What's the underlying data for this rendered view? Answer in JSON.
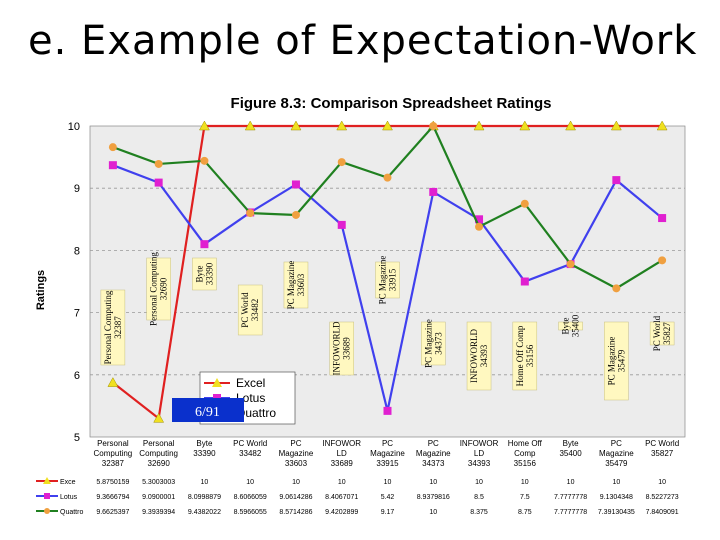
{
  "slide_title": "e. Example of Expectation-Work",
  "page_badge": "6/91",
  "chart_data": {
    "type": "line",
    "title": "Figure 8.3: Comparison Spreadsheet Ratings",
    "ylabel": "Ratings",
    "xlabel": "",
    "ylim": [
      5,
      10
    ],
    "yticks": [
      "5",
      "6",
      "7",
      "8",
      "9",
      "10"
    ],
    "grid": true,
    "legend": "center-left",
    "categories": [
      [
        "Personal",
        "Computing",
        "32387"
      ],
      [
        "Personal",
        "Computing",
        "32690"
      ],
      [
        "Byte",
        "33390"
      ],
      [
        "PC World",
        "33482"
      ],
      [
        "PC",
        "Magazine",
        "33603"
      ],
      [
        "INFOWOR",
        "LD",
        "33689"
      ],
      [
        "PC",
        "Magazine",
        "33915"
      ],
      [
        "PC",
        "Magazine",
        "34373"
      ],
      [
        "INFOWOR",
        "LD",
        "34393"
      ],
      [
        "Home Off",
        "Comp",
        "35156"
      ],
      [
        "Byte",
        "35400"
      ],
      [
        "PC",
        "Magazine",
        "35479"
      ],
      [
        "PC World",
        "35827"
      ]
    ],
    "annotations": [
      [
        "Personal Computing",
        "32387"
      ],
      [
        "Personal Computing",
        "32690"
      ],
      [
        "Byte",
        "33390"
      ],
      [
        "PC World",
        "33482"
      ],
      [
        "PC Magazine",
        "33603"
      ],
      [
        "INFOWORLD",
        "33689"
      ],
      [
        "PC Magazine",
        "33915"
      ],
      [
        "PC Magazine",
        "34373"
      ],
      [
        "INFOWORLD",
        "34393"
      ],
      [
        "Home Off Comp",
        "35156"
      ],
      [
        "Byte",
        "35400"
      ],
      [
        "PC Magazine",
        "35479"
      ],
      [
        "PC World",
        "35827"
      ]
    ],
    "series": [
      {
        "name": "Excel",
        "table_label": "Exce",
        "color": "#e02020",
        "marker_color": "#f0e020",
        "marker": "triangle",
        "values": [
          5.875,
          5.3,
          10,
          10,
          10,
          10,
          10,
          10,
          10,
          10,
          10,
          10,
          10
        ],
        "table_values": [
          "5.8750159",
          "5.3003003",
          "10",
          "10",
          "10",
          "10",
          "10",
          "10",
          "10",
          "10",
          "10",
          "10",
          "10"
        ]
      },
      {
        "name": "Lotus",
        "table_label": "Lotus",
        "color": "#4040ee",
        "marker_color": "#e020d0",
        "marker": "square",
        "values": [
          9.37,
          9.09,
          8.1,
          8.61,
          9.06,
          8.41,
          5.42,
          8.94,
          8.5,
          7.5,
          7.78,
          9.13,
          8.52
        ],
        "table_values": [
          "9.3666794",
          "9.0900001",
          "8.0998879",
          "8.6066059",
          "9.0614286",
          "8.4067071",
          "5.42",
          "8.9379816",
          "8.5",
          "7.5",
          "7.7777778",
          "9.1304348",
          "8.5227273"
        ]
      },
      {
        "name": "Quattro",
        "table_label": "Quattro",
        "color": "#208020",
        "marker_color": "#f0a040",
        "marker": "circle",
        "values": [
          9.66,
          9.39,
          9.44,
          8.6,
          8.57,
          9.42,
          9.17,
          10,
          8.38,
          8.75,
          7.78,
          7.39,
          7.84
        ],
        "table_values": [
          "9.6625397",
          "9.3939394",
          "9.4382022",
          "8.5966055",
          "8.5714286",
          "9.4202899",
          "9.17",
          "10",
          "8.375",
          "8.75",
          "7.7777778",
          "7.39130435",
          "7.8409091"
        ]
      }
    ]
  }
}
